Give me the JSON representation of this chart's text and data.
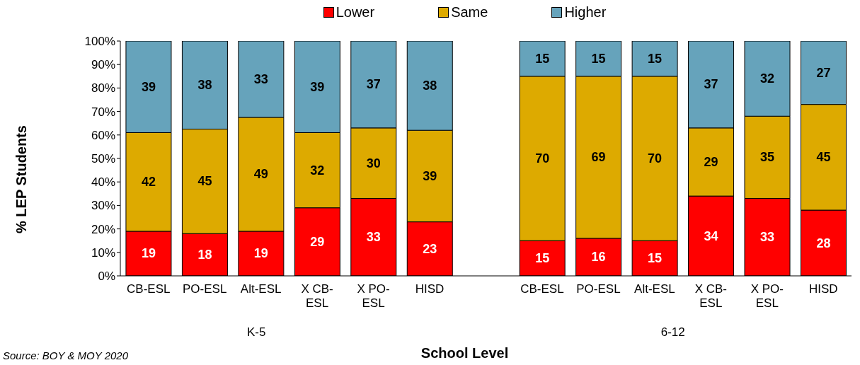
{
  "chart_data": {
    "type": "bar",
    "stacked": true,
    "xlabel": "School Level",
    "ylabel": "% LEP Students",
    "categories": [
      "CB-ESL",
      "PO-ESL",
      "Alt-ESL",
      "X CB-ESL",
      "X PO-ESL",
      "HISD",
      null,
      "CB-ESL",
      "PO-ESL",
      "Alt-ESL",
      "X CB-ESL",
      "X PO-ESL",
      "HISD"
    ],
    "series": [
      {
        "name": "Lower",
        "color": "#ff0000",
        "values": [
          19,
          18,
          19,
          29,
          33,
          23,
          null,
          15,
          16,
          15,
          34,
          33,
          28
        ],
        "value_labels": [
          "19",
          "18",
          "19",
          "29",
          "33",
          "23",
          null,
          "15",
          "16",
          "15",
          "34",
          "33",
          "28"
        ]
      },
      {
        "name": "Same",
        "color": "#ddaa00",
        "values": [
          42,
          44.5,
          48.5,
          32,
          30,
          39,
          null,
          70,
          69,
          70,
          29,
          35,
          45
        ],
        "value_labels": [
          "42",
          "45",
          "49",
          "32",
          "30",
          "39",
          null,
          "70",
          "69",
          "70",
          "29",
          "35",
          "45"
        ]
      },
      {
        "name": "Higher",
        "color": "#66a3bb",
        "values": [
          39,
          37.5,
          32.5,
          39,
          37,
          38,
          null,
          15,
          15,
          15,
          37,
          32,
          27
        ],
        "value_labels": [
          "39",
          "38",
          "33",
          "39",
          "37",
          "38",
          null,
          "15",
          "15",
          "15",
          "37",
          "32",
          "27"
        ]
      }
    ],
    "ylim": [
      0,
      100
    ],
    "yticks": [
      {
        "value": 0,
        "label": "0%"
      },
      {
        "value": 10,
        "label": "10%"
      },
      {
        "value": 20,
        "label": "20%"
      },
      {
        "value": 30,
        "label": "30%"
      },
      {
        "value": 40,
        "label": "40%"
      },
      {
        "value": 50,
        "label": "50%"
      },
      {
        "value": 60,
        "label": "60%"
      },
      {
        "value": 70,
        "label": "70%"
      },
      {
        "value": 80,
        "label": "80%"
      },
      {
        "value": 90,
        "label": "90%"
      },
      {
        "value": 100,
        "label": "100%"
      }
    ],
    "legend": "top",
    "grid": false,
    "annotations": [
      "K-5",
      "6-12",
      "Source: BOY & MOY 2020"
    ]
  }
}
